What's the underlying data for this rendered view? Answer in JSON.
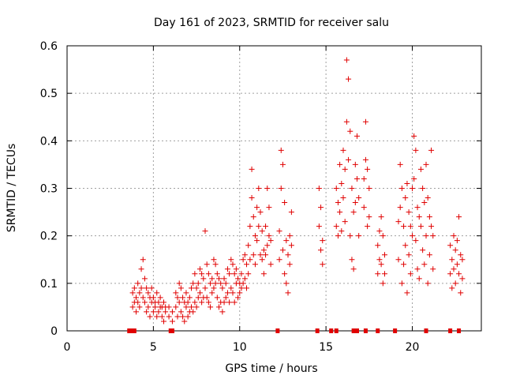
{
  "chart_data": {
    "type": "scatter",
    "title": "Day 161 of 2023, SRMTID for receiver salu",
    "xlabel": "GPS time / hours",
    "ylabel": "SRMTID / TECUs",
    "xlim": [
      0,
      24
    ],
    "ylim": [
      0,
      0.6
    ],
    "xticks": [
      0,
      5,
      10,
      15,
      20
    ],
    "yticks": [
      0,
      0.1,
      0.2,
      0.3,
      0.4,
      0.5,
      0.6
    ],
    "xtick_labels": [
      "0",
      "5",
      "10",
      "15",
      "20"
    ],
    "ytick_labels": [
      "0",
      "0.1",
      "0.2",
      "0.3",
      "0.4",
      "0.5",
      "0.6"
    ],
    "grid": true,
    "marker": "+",
    "series": [
      {
        "name": "SRMTID",
        "color": "#e00000",
        "points": [
          [
            3.8,
            0.05
          ],
          [
            3.8,
            0.08
          ],
          [
            3.9,
            0.06
          ],
          [
            3.9,
            0.09
          ],
          [
            4.0,
            0.07
          ],
          [
            4.0,
            0.04
          ],
          [
            4.1,
            0.1
          ],
          [
            4.1,
            0.06
          ],
          [
            4.2,
            0.08
          ],
          [
            4.2,
            0.05
          ],
          [
            4.3,
            0.13
          ],
          [
            4.3,
            0.09
          ],
          [
            4.4,
            0.15
          ],
          [
            4.4,
            0.07
          ],
          [
            4.5,
            0.11
          ],
          [
            4.5,
            0.06
          ],
          [
            4.6,
            0.09
          ],
          [
            4.6,
            0.04
          ],
          [
            4.7,
            0.08
          ],
          [
            4.7,
            0.05
          ],
          [
            4.8,
            0.07
          ],
          [
            4.8,
            0.03
          ],
          [
            4.9,
            0.06
          ],
          [
            4.9,
            0.09
          ],
          [
            5.0,
            0.07
          ],
          [
            5.0,
            0.04
          ],
          [
            5.1,
            0.06
          ],
          [
            5.1,
            0.05
          ],
          [
            5.2,
            0.08
          ],
          [
            5.2,
            0.03
          ],
          [
            5.3,
            0.06
          ],
          [
            5.3,
            0.04
          ],
          [
            5.4,
            0.07
          ],
          [
            5.4,
            0.05
          ],
          [
            5.5,
            0.05
          ],
          [
            5.5,
            0.03
          ],
          [
            5.6,
            0.06
          ],
          [
            5.6,
            0.02
          ],
          [
            5.7,
            0.05
          ],
          [
            5.7,
            0.04
          ],
          [
            5.9,
            0.05
          ],
          [
            5.9,
            0.03
          ],
          [
            6.1,
            0.04
          ],
          [
            6.1,
            0.02
          ],
          [
            6.3,
            0.08
          ],
          [
            6.3,
            0.05
          ],
          [
            6.4,
            0.07
          ],
          [
            6.4,
            0.03
          ],
          [
            6.5,
            0.1
          ],
          [
            6.5,
            0.06
          ],
          [
            6.6,
            0.09
          ],
          [
            6.6,
            0.04
          ],
          [
            6.7,
            0.07
          ],
          [
            6.7,
            0.03
          ],
          [
            6.8,
            0.06
          ],
          [
            6.8,
            0.02
          ],
          [
            6.9,
            0.08
          ],
          [
            6.9,
            0.05
          ],
          [
            7.0,
            0.06
          ],
          [
            7.0,
            0.03
          ],
          [
            7.1,
            0.07
          ],
          [
            7.1,
            0.04
          ],
          [
            7.2,
            0.09
          ],
          [
            7.2,
            0.05
          ],
          [
            7.3,
            0.1
          ],
          [
            7.3,
            0.04
          ],
          [
            7.4,
            0.12
          ],
          [
            7.4,
            0.06
          ],
          [
            7.5,
            0.09
          ],
          [
            7.5,
            0.05
          ],
          [
            7.6,
            0.1
          ],
          [
            7.6,
            0.07
          ],
          [
            7.7,
            0.13
          ],
          [
            7.7,
            0.08
          ],
          [
            7.8,
            0.12
          ],
          [
            7.8,
            0.06
          ],
          [
            7.9,
            0.11
          ],
          [
            7.9,
            0.07
          ],
          [
            8.0,
            0.21
          ],
          [
            8.0,
            0.09
          ],
          [
            8.1,
            0.14
          ],
          [
            8.1,
            0.07
          ],
          [
            8.2,
            0.12
          ],
          [
            8.2,
            0.06
          ],
          [
            8.3,
            0.1
          ],
          [
            8.3,
            0.05
          ],
          [
            8.4,
            0.11
          ],
          [
            8.4,
            0.08
          ],
          [
            8.5,
            0.15
          ],
          [
            8.5,
            0.09
          ],
          [
            8.6,
            0.14
          ],
          [
            8.6,
            0.1
          ],
          [
            8.7,
            0.12
          ],
          [
            8.7,
            0.07
          ],
          [
            8.8,
            0.11
          ],
          [
            8.8,
            0.05
          ],
          [
            8.9,
            0.1
          ],
          [
            8.9,
            0.06
          ],
          [
            9.0,
            0.09
          ],
          [
            9.0,
            0.04
          ],
          [
            9.1,
            0.11
          ],
          [
            9.1,
            0.06
          ],
          [
            9.2,
            0.1
          ],
          [
            9.2,
            0.07
          ],
          [
            9.3,
            0.13
          ],
          [
            9.3,
            0.08
          ],
          [
            9.4,
            0.12
          ],
          [
            9.4,
            0.06
          ],
          [
            9.5,
            0.15
          ],
          [
            9.5,
            0.09
          ],
          [
            9.6,
            0.14
          ],
          [
            9.6,
            0.08
          ],
          [
            9.7,
            0.12
          ],
          [
            9.7,
            0.06
          ],
          [
            9.8,
            0.13
          ],
          [
            9.8,
            0.1
          ],
          [
            9.9,
            0.11
          ],
          [
            9.9,
            0.07
          ],
          [
            10.0,
            0.1
          ],
          [
            10.0,
            0.08
          ],
          [
            10.1,
            0.12
          ],
          [
            10.1,
            0.09
          ],
          [
            10.2,
            0.15
          ],
          [
            10.2,
            0.1
          ],
          [
            10.3,
            0.16
          ],
          [
            10.3,
            0.11
          ],
          [
            10.4,
            0.14
          ],
          [
            10.4,
            0.09
          ],
          [
            10.5,
            0.18
          ],
          [
            10.5,
            0.12
          ],
          [
            10.6,
            0.22
          ],
          [
            10.6,
            0.15
          ],
          [
            10.7,
            0.34
          ],
          [
            10.7,
            0.28
          ],
          [
            10.8,
            0.24
          ],
          [
            10.8,
            0.16
          ],
          [
            10.9,
            0.2
          ],
          [
            10.9,
            0.14
          ],
          [
            11.0,
            0.26
          ],
          [
            11.0,
            0.19
          ],
          [
            11.1,
            0.3
          ],
          [
            11.1,
            0.22
          ],
          [
            11.2,
            0.25
          ],
          [
            11.2,
            0.16
          ],
          [
            11.3,
            0.21
          ],
          [
            11.3,
            0.15
          ],
          [
            11.4,
            0.17
          ],
          [
            11.4,
            0.12
          ],
          [
            11.5,
            0.22
          ],
          [
            11.5,
            0.16
          ],
          [
            11.6,
            0.3
          ],
          [
            11.6,
            0.18
          ],
          [
            11.7,
            0.26
          ],
          [
            11.7,
            0.2
          ],
          [
            11.8,
            0.19
          ],
          [
            11.8,
            0.14
          ],
          [
            12.3,
            0.21
          ],
          [
            12.3,
            0.15
          ],
          [
            12.4,
            0.38
          ],
          [
            12.4,
            0.3
          ],
          [
            12.5,
            0.35
          ],
          [
            12.5,
            0.17
          ],
          [
            12.6,
            0.27
          ],
          [
            12.6,
            0.12
          ],
          [
            12.7,
            0.19
          ],
          [
            12.7,
            0.1
          ],
          [
            12.8,
            0.16
          ],
          [
            12.8,
            0.08
          ],
          [
            12.9,
            0.2
          ],
          [
            12.9,
            0.14
          ],
          [
            13.0,
            0.25
          ],
          [
            13.0,
            0.18
          ],
          [
            14.6,
            0.3
          ],
          [
            14.6,
            0.22
          ],
          [
            14.7,
            0.26
          ],
          [
            14.7,
            0.17
          ],
          [
            14.8,
            0.19
          ],
          [
            14.8,
            0.14
          ],
          [
            15.6,
            0.3
          ],
          [
            15.6,
            0.22
          ],
          [
            15.7,
            0.27
          ],
          [
            15.7,
            0.2
          ],
          [
            15.8,
            0.35
          ],
          [
            15.8,
            0.25
          ],
          [
            15.9,
            0.31
          ],
          [
            15.9,
            0.21
          ],
          [
            16.0,
            0.38
          ],
          [
            16.0,
            0.28
          ],
          [
            16.1,
            0.34
          ],
          [
            16.1,
            0.23
          ],
          [
            16.2,
            0.57
          ],
          [
            16.2,
            0.44
          ],
          [
            16.3,
            0.53
          ],
          [
            16.3,
            0.36
          ],
          [
            16.4,
            0.42
          ],
          [
            16.4,
            0.2
          ],
          [
            16.5,
            0.3
          ],
          [
            16.5,
            0.15
          ],
          [
            16.6,
            0.25
          ],
          [
            16.6,
            0.13
          ],
          [
            16.7,
            0.35
          ],
          [
            16.7,
            0.27
          ],
          [
            16.8,
            0.41
          ],
          [
            16.8,
            0.32
          ],
          [
            16.9,
            0.28
          ],
          [
            16.9,
            0.2
          ],
          [
            17.2,
            0.32
          ],
          [
            17.2,
            0.26
          ],
          [
            17.3,
            0.44
          ],
          [
            17.3,
            0.36
          ],
          [
            17.4,
            0.34
          ],
          [
            17.4,
            0.22
          ],
          [
            17.5,
            0.3
          ],
          [
            17.5,
            0.24
          ],
          [
            18.0,
            0.18
          ],
          [
            18.0,
            0.12
          ],
          [
            18.1,
            0.21
          ],
          [
            18.1,
            0.15
          ],
          [
            18.2,
            0.24
          ],
          [
            18.2,
            0.14
          ],
          [
            18.3,
            0.2
          ],
          [
            18.3,
            0.1
          ],
          [
            18.4,
            0.16
          ],
          [
            18.4,
            0.12
          ],
          [
            19.2,
            0.23
          ],
          [
            19.2,
            0.15
          ],
          [
            19.3,
            0.35
          ],
          [
            19.3,
            0.26
          ],
          [
            19.4,
            0.3
          ],
          [
            19.4,
            0.1
          ],
          [
            19.5,
            0.22
          ],
          [
            19.5,
            0.14
          ],
          [
            19.6,
            0.28
          ],
          [
            19.6,
            0.18
          ],
          [
            19.7,
            0.31
          ],
          [
            19.7,
            0.08
          ],
          [
            19.8,
            0.25
          ],
          [
            19.8,
            0.16
          ],
          [
            19.9,
            0.22
          ],
          [
            19.9,
            0.12
          ],
          [
            20.0,
            0.3
          ],
          [
            20.0,
            0.2
          ],
          [
            20.1,
            0.41
          ],
          [
            20.1,
            0.32
          ],
          [
            20.2,
            0.38
          ],
          [
            20.2,
            0.19
          ],
          [
            20.3,
            0.26
          ],
          [
            20.3,
            0.13
          ],
          [
            20.4,
            0.24
          ],
          [
            20.4,
            0.11
          ],
          [
            20.5,
            0.34
          ],
          [
            20.5,
            0.22
          ],
          [
            20.6,
            0.3
          ],
          [
            20.6,
            0.17
          ],
          [
            20.7,
            0.27
          ],
          [
            20.7,
            0.14
          ],
          [
            20.8,
            0.35
          ],
          [
            20.8,
            0.2
          ],
          [
            20.9,
            0.28
          ],
          [
            20.9,
            0.1
          ],
          [
            21.0,
            0.24
          ],
          [
            21.0,
            0.16
          ],
          [
            21.1,
            0.38
          ],
          [
            21.1,
            0.22
          ],
          [
            21.2,
            0.2
          ],
          [
            21.2,
            0.13
          ],
          [
            22.2,
            0.18
          ],
          [
            22.2,
            0.12
          ],
          [
            22.3,
            0.15
          ],
          [
            22.3,
            0.09
          ],
          [
            22.4,
            0.2
          ],
          [
            22.4,
            0.13
          ],
          [
            22.5,
            0.17
          ],
          [
            22.5,
            0.1
          ],
          [
            22.6,
            0.19
          ],
          [
            22.6,
            0.14
          ],
          [
            22.7,
            0.24
          ],
          [
            22.7,
            0.12
          ],
          [
            22.8,
            0.16
          ],
          [
            22.8,
            0.08
          ],
          [
            22.9,
            0.15
          ],
          [
            22.9,
            0.11
          ]
        ]
      }
    ],
    "baseline_markers": [
      3.6,
      3.7,
      3.8,
      3.9,
      6.0,
      6.1,
      12.2,
      14.5,
      15.3,
      15.6,
      16.6,
      16.8,
      17.3,
      18.0,
      19.0,
      20.8,
      22.2,
      22.7
    ]
  }
}
